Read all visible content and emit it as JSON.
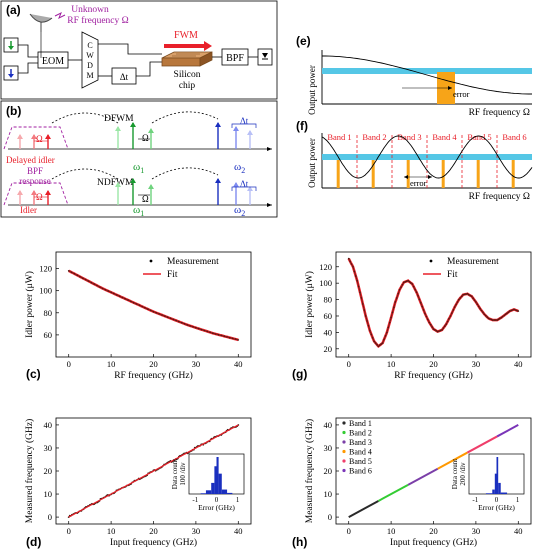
{
  "panels": {
    "a": {
      "letter": "(a)",
      "rf_label_1": "Unknown",
      "rf_label_2": "RF frequency Ω",
      "eom": "EOM",
      "cwdm": [
        "C",
        "W",
        "D",
        "M"
      ],
      "delay": "Δt",
      "fwm": "FWM",
      "chip_1": "Silicon",
      "chip_2": "chip",
      "bpf": "BPF"
    },
    "b": {
      "letter": "(b)",
      "dfwm": "DFWM",
      "ndfwm": "NDFWM",
      "delayed_idler": "Delayed idler",
      "idler": "Idler",
      "bpf_resp_1": "BPF",
      "bpf_resp_2": "response",
      "omega": "Ω",
      "omega1": "ω",
      "omega2": "ω",
      "sub1": "1",
      "sub2": "2",
      "dt": "Δt"
    },
    "e": {
      "letter": "(e)",
      "ylabel": "Output power",
      "xlabel": "RF frequency Ω",
      "error": "error"
    },
    "f": {
      "letter": "(f)",
      "ylabel": "Output power",
      "xlabel": "RF frequency Ω",
      "error": "error",
      "bands": [
        "Band 1",
        "Band 2",
        "Band 3",
        "Band 4",
        "Band 5",
        "Band 6"
      ]
    },
    "c": {
      "letter": "(c)"
    },
    "g": {
      "letter": "(g)"
    },
    "d": {
      "letter": "(d)"
    },
    "h": {
      "letter": "(h)"
    }
  },
  "chart_data": [
    {
      "id": "c",
      "type": "line",
      "xlabel": "RF frequency (GHz)",
      "ylabel": "Idler power (μW)",
      "xlim": [
        -3,
        43
      ],
      "ylim": [
        40,
        135
      ],
      "xticks": [
        0,
        10,
        20,
        30,
        40
      ],
      "yticks": [
        60,
        80,
        100,
        120
      ],
      "legend": [
        "Measurement",
        "Fit"
      ],
      "legend_placement": "top-right",
      "series": [
        {
          "name": "Measurement",
          "x": [
            0,
            2,
            4,
            6,
            8,
            10,
            12,
            14,
            16,
            18,
            20,
            22,
            24,
            26,
            28,
            30,
            32,
            34,
            36,
            38,
            40
          ],
          "y": [
            118,
            114,
            110,
            106,
            102,
            98.5,
            95,
            91.5,
            88,
            84.5,
            81,
            78,
            75,
            72,
            69,
            66.5,
            64,
            61.5,
            59.5,
            57.5,
            55.5
          ]
        }
      ]
    },
    {
      "id": "g",
      "type": "line",
      "xlabel": "RF frequency (GHz)",
      "ylabel": "Idler power (μW)",
      "xlim": [
        -3,
        43
      ],
      "ylim": [
        10,
        138
      ],
      "xticks": [
        0,
        10,
        20,
        30,
        40
      ],
      "yticks": [
        20,
        40,
        60,
        80,
        100,
        120
      ],
      "legend": [
        "Measurement",
        "Fit"
      ],
      "legend_placement": "top-right",
      "series": [
        {
          "name": "Measurement",
          "x": [
            0,
            1,
            2,
            3,
            4,
            5,
            6,
            7,
            8,
            9,
            10,
            11,
            12,
            13,
            14,
            15,
            16,
            17,
            18,
            19,
            20,
            21,
            22,
            23,
            24,
            25,
            26,
            27,
            28,
            29,
            30,
            31,
            32,
            33,
            34,
            35,
            36,
            37,
            38,
            39,
            40
          ],
          "y": [
            130,
            120,
            103,
            82,
            60,
            42,
            29,
            23,
            27,
            40,
            58,
            77,
            92,
            101,
            103,
            99,
            89,
            76,
            63,
            52,
            44,
            41,
            43,
            50,
            60,
            71,
            80,
            86,
            87,
            84,
            77,
            69,
            62,
            57,
            55,
            55,
            58,
            62,
            66,
            68,
            66
          ]
        }
      ]
    },
    {
      "id": "d",
      "type": "scatter",
      "xlabel": "Input frequency (GHz)",
      "ylabel": "Measured frequency (GHz)",
      "xlim": [
        -3,
        43
      ],
      "ylim": [
        -3,
        43
      ],
      "xticks": [
        0,
        10,
        20,
        30,
        40
      ],
      "yticks": [
        0,
        10,
        20,
        30,
        40
      ],
      "series": [
        {
          "name": "Measurement",
          "x": [
            0,
            10,
            20,
            30,
            40
          ],
          "y": [
            0,
            10,
            20,
            30,
            40
          ]
        }
      ],
      "inset": {
        "xlabel": "Error (GHz)",
        "ylabel_1": "Data count",
        "ylabel_2": "100 /div",
        "xticks": [
          -1,
          0,
          1
        ],
        "bins": [
          -1,
          -0.75,
          -0.5,
          -0.25,
          -0.1,
          0,
          0.1,
          0.25,
          0.5,
          0.75,
          1
        ],
        "values": [
          0,
          0.02,
          0.1,
          0.3,
          0.75,
          1,
          0.55,
          0.12,
          0.03,
          0
        ]
      }
    },
    {
      "id": "h",
      "type": "scatter",
      "xlabel": "Input frequency (GHz)",
      "ylabel": "Measured frequency (GHz)",
      "xlim": [
        -3,
        43
      ],
      "ylim": [
        -3,
        43
      ],
      "xticks": [
        0,
        10,
        20,
        30,
        40
      ],
      "yticks": [
        0,
        10,
        20,
        30,
        40
      ],
      "legend": [
        "Band 1",
        "Band 2",
        "Band 3",
        "Band 4",
        "Band 5",
        "Band 6"
      ],
      "legend_placement": "top-left",
      "bands": [
        {
          "name": "Band 1",
          "x": [
            0,
            7
          ],
          "color": "#2a2a2a"
        },
        {
          "name": "Band 2",
          "x": [
            7,
            14
          ],
          "color": "#33cc33"
        },
        {
          "name": "Band 3",
          "x": [
            14,
            21
          ],
          "color": "#7b3fa8"
        },
        {
          "name": "Band 4",
          "x": [
            21,
            28
          ],
          "color": "#ff9900"
        },
        {
          "name": "Band 5",
          "x": [
            28,
            35
          ],
          "color": "#ef3e6a"
        },
        {
          "name": "Band 6",
          "x": [
            35,
            40
          ],
          "color": "#7a35b8"
        }
      ],
      "inset": {
        "xlabel": "Error (GHz)",
        "ylabel_1": "Data count",
        "ylabel_2": "200 /div",
        "xticks": [
          -1,
          0,
          1
        ],
        "bins": [
          -1,
          -0.5,
          -0.2,
          -0.08,
          0,
          0.08,
          0.2,
          0.5,
          1
        ],
        "values": [
          0,
          0.02,
          0.12,
          0.55,
          1,
          0.3,
          0.04,
          0
        ]
      }
    }
  ],
  "colors": {
    "fit": "#e8202a",
    "measurement": "#3d1d12",
    "cyan": "#55c7e6",
    "orange": "#f7a418",
    "green": "#18992f",
    "blue": "#1a2fbf",
    "purple": "#a020a0",
    "red": "#e8202a"
  }
}
